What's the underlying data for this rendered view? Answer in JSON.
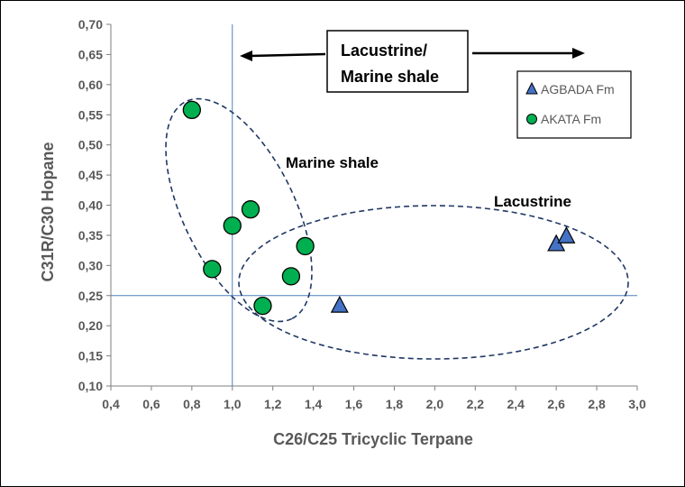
{
  "chart_data": {
    "type": "scatter",
    "xlabel": "C26/C25 Tricyclic Terpane",
    "ylabel": "C31R/C30 Hopane",
    "xlim": [
      0.4,
      3.0
    ],
    "ylim": [
      0.1,
      0.7
    ],
    "x_ticks": [
      "0,4",
      "0,6",
      "0,8",
      "1,0",
      "1,2",
      "1,4",
      "1,6",
      "1,8",
      "2,0",
      "2,2",
      "2,4",
      "2,6",
      "2,8",
      "3,0"
    ],
    "y_ticks": [
      "0,10",
      "0,15",
      "0,20",
      "0,25",
      "0,30",
      "0,35",
      "0,40",
      "0,45",
      "0,50",
      "0,55",
      "0,60",
      "0,65",
      "0,70"
    ],
    "grid": false,
    "legend_position": "top-right",
    "reference_lines": {
      "x": 1.0,
      "y": 0.25
    },
    "series": [
      {
        "name": "AGBADA Fm",
        "marker": "triangle",
        "color": "#4472c4",
        "points": [
          {
            "x": 1.53,
            "y": 0.233
          },
          {
            "x": 2.6,
            "y": 0.335
          },
          {
            "x": 2.65,
            "y": 0.348
          }
        ]
      },
      {
        "name": "AKATA Fm",
        "marker": "circle",
        "color": "#00b050",
        "points": [
          {
            "x": 0.8,
            "y": 0.558
          },
          {
            "x": 0.9,
            "y": 0.294
          },
          {
            "x": 1.0,
            "y": 0.366
          },
          {
            "x": 1.09,
            "y": 0.393
          },
          {
            "x": 1.15,
            "y": 0.233
          },
          {
            "x": 1.29,
            "y": 0.282
          },
          {
            "x": 1.36,
            "y": 0.332
          }
        ]
      }
    ],
    "annotations": {
      "box_line1": "Lacustrine/",
      "box_line2": "Marine shale",
      "marine_label": "Marine shale",
      "lacustrine_label": "Lacustrine"
    }
  },
  "colors": {
    "axis": "#7f7f7f",
    "refline": "#4f81bd",
    "ellipse": "#1f3864"
  }
}
